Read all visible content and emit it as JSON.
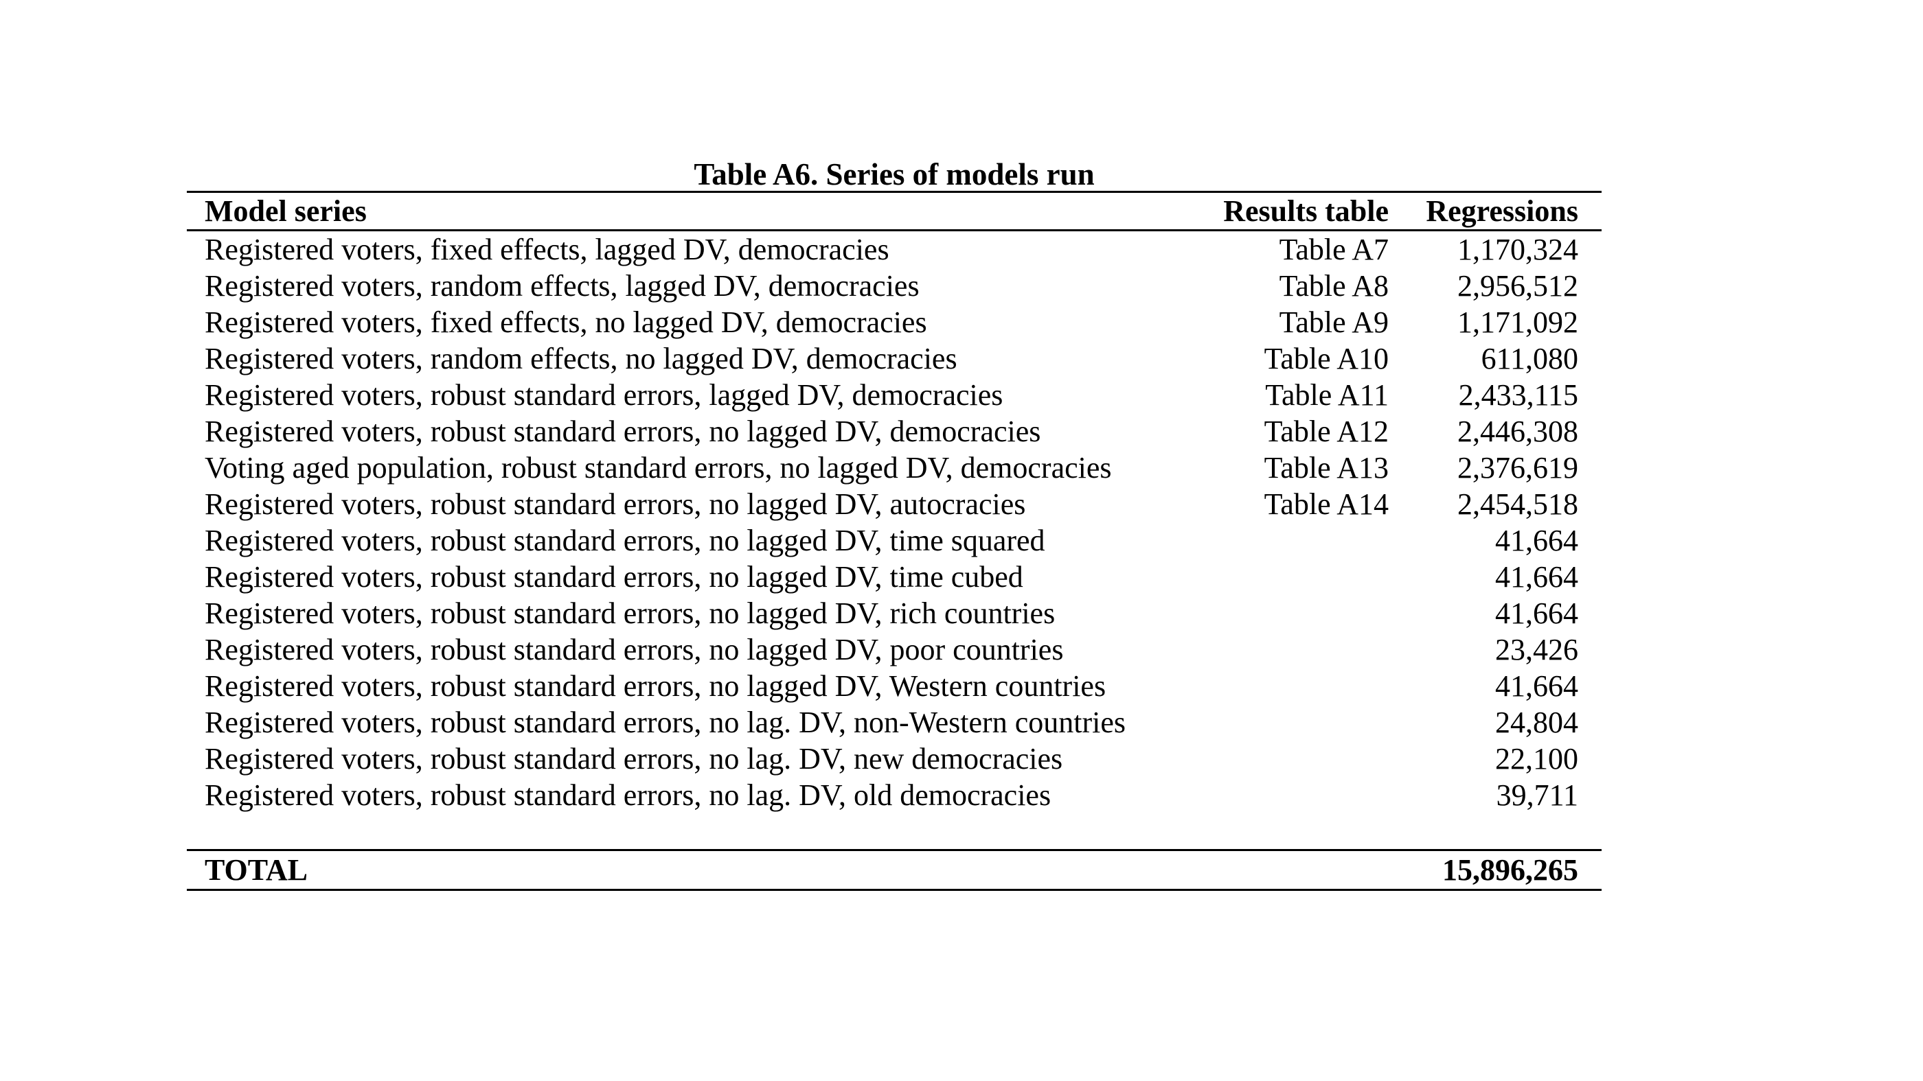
{
  "page": {
    "background_color": "#ffffff",
    "text_color": "#000000"
  },
  "table": {
    "title": "Table A6. Series of models run",
    "columns": [
      "Model series",
      "Results table",
      "Regressions"
    ],
    "rows": [
      [
        "Registered voters, fixed effects, lagged DV, democracies",
        "Table A7",
        "1,170,324"
      ],
      [
        "Registered voters, random effects, lagged DV, democracies",
        "Table A8",
        "2,956,512"
      ],
      [
        "Registered voters, fixed effects, no lagged DV, democracies",
        "Table A9",
        "1,171,092"
      ],
      [
        "Registered voters, random effects, no lagged DV, democracies",
        "Table A10",
        "611,080"
      ],
      [
        "Registered voters, robust standard errors, lagged DV, democracies",
        "Table A11",
        "2,433,115"
      ],
      [
        "Registered voters, robust standard errors, no lagged DV, democracies",
        "Table A12",
        "2,446,308"
      ],
      [
        "Voting aged population, robust standard errors, no lagged DV, democracies",
        "Table A13",
        "2,376,619"
      ],
      [
        "Registered voters, robust standard errors, no lagged DV, autocracies",
        "Table A14",
        "2,454,518"
      ],
      [
        "Registered voters, robust standard errors, no lagged DV, time squared",
        "",
        "41,664"
      ],
      [
        "Registered voters, robust standard errors, no lagged DV, time cubed",
        "",
        "41,664"
      ],
      [
        "Registered voters, robust standard errors, no lagged DV, rich countries",
        "",
        "41,664"
      ],
      [
        "Registered voters, robust standard errors, no lagged DV, poor countries",
        "",
        "23,426"
      ],
      [
        "Registered voters, robust standard errors, no lagged DV, Western countries",
        "",
        "41,664"
      ],
      [
        "Registered voters, robust standard errors, no lag. DV, non-Western countries",
        "",
        "24,804"
      ],
      [
        "Registered voters, robust standard errors, no lag. DV, new democracies",
        "",
        "22,100"
      ],
      [
        "Registered voters, robust standard errors, no lag. DV, old democracies",
        "",
        "39,711"
      ]
    ],
    "total_label": "TOTAL",
    "total_value": "15,896,265"
  }
}
